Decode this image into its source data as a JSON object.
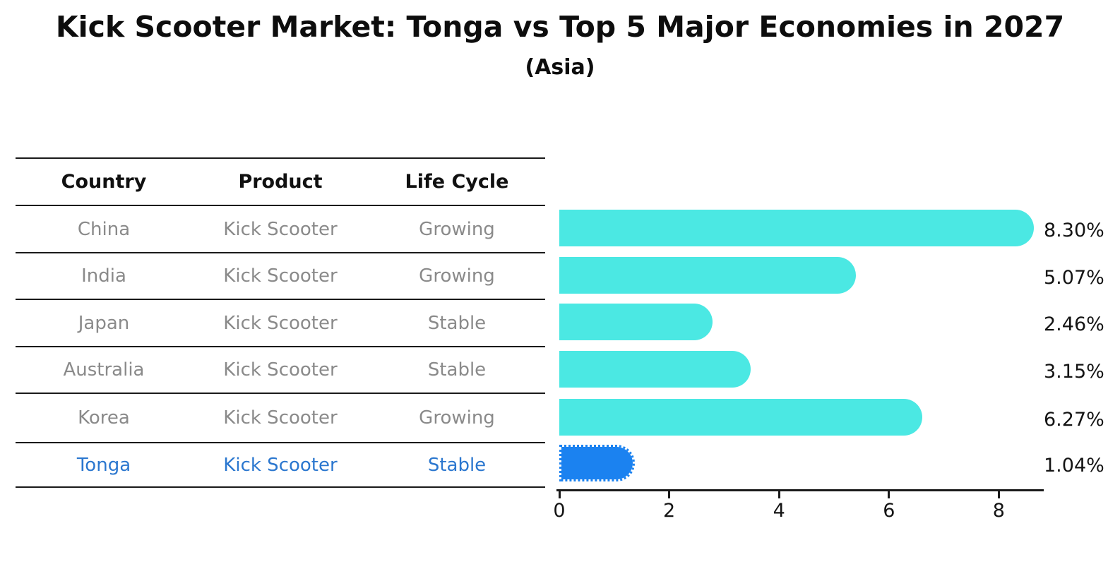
{
  "title": "Kick Scooter Market: Tonga vs Top 5 Major Economies in 2027",
  "subtitle": "(Asia)",
  "table": {
    "headers": [
      "Country",
      "Product",
      "Life Cycle"
    ],
    "rows": [
      {
        "country": "China",
        "product": "Kick Scooter",
        "life_cycle": "Growing",
        "highlight": false
      },
      {
        "country": "India",
        "product": "Kick Scooter",
        "life_cycle": "Growing",
        "highlight": false
      },
      {
        "country": "Japan",
        "product": "Kick Scooter",
        "life_cycle": "Stable",
        "highlight": false
      },
      {
        "country": "Australia",
        "product": "Kick Scooter",
        "life_cycle": "Stable",
        "highlight": false
      },
      {
        "country": "Korea",
        "product": "Kick Scooter",
        "life_cycle": "Growing",
        "highlight": false
      },
      {
        "country": "Tonga",
        "product": "Kick Scooter",
        "life_cycle": "Stable",
        "highlight": true
      }
    ]
  },
  "chart_data": {
    "type": "bar",
    "orientation": "horizontal",
    "title": "Kick Scooter Market: Tonga vs Top 5 Major Economies in 2027",
    "subtitle": "(Asia)",
    "categories": [
      "China",
      "India",
      "Japan",
      "Australia",
      "Korea",
      "Tonga"
    ],
    "values": [
      8.3,
      5.07,
      2.46,
      3.15,
      6.27,
      1.04
    ],
    "value_labels": [
      "8.30%",
      "5.07%",
      "2.46%",
      "3.15%",
      "6.27%",
      "1.04%"
    ],
    "unit": "%",
    "highlight_category": "Tonga",
    "highlight_index": 5,
    "x_ticks": [
      0,
      2,
      4,
      6,
      8
    ],
    "xlim": [
      0,
      8.77
    ],
    "grid": false,
    "legend": false,
    "bar_color": "#4BE8E3",
    "highlight_bar_color": "#1B82F0"
  },
  "colors": {
    "bar": "#4BE8E3",
    "highlight_bar": "#1B82F0",
    "highlight_text": "#2B77CF",
    "row_text": "#8A8A8A",
    "header_text": "#111111",
    "line": "#1A1A1A",
    "label_text": "#141414",
    "background": "#FFFFFF"
  }
}
